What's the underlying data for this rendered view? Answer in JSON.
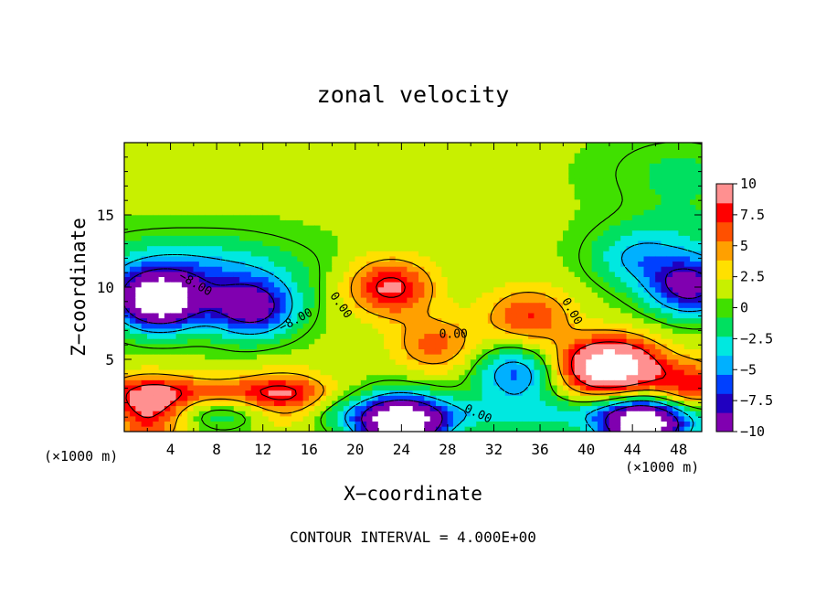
{
  "chart_data": {
    "type": "heatmap",
    "title": "zonal velocity",
    "xlabel": "X−coordinate",
    "ylabel": "Z−coordinate",
    "x_unit": "(×1000 m)",
    "x_unit_right": "(×1000 m)",
    "xlim": [
      0,
      50
    ],
    "ylim": [
      0,
      20
    ],
    "x_ticks": [
      4,
      8,
      12,
      16,
      20,
      24,
      28,
      32,
      36,
      40,
      44,
      48
    ],
    "x_tick_labels": [
      "4",
      "8",
      "12",
      "16",
      "20",
      "24",
      "28",
      "32",
      "36",
      "40",
      "44",
      "48"
    ],
    "y_ticks": [
      5,
      10,
      15
    ],
    "y_tick_labels": [
      "5",
      "10",
      "15"
    ],
    "colorbar": {
      "min": -10,
      "max": 10,
      "ticks": [
        10,
        7.5,
        5,
        2.5,
        0,
        -2.5,
        -5,
        -7.5,
        -10
      ],
      "tick_labels": [
        "10",
        "7.5",
        "5",
        "2.5",
        "0",
        "−2.5",
        "−5",
        "−7.5",
        "−10"
      ],
      "colors": [
        "#8000b0",
        "#2000c0",
        "#0040ff",
        "#00b0ff",
        "#00e8e0",
        "#00e060",
        "#40e000",
        "#c8f000",
        "#ffe000",
        "#ffa000",
        "#ff5000",
        "#ff0000",
        "#ff9090"
      ]
    },
    "contour_labels": [
      "−8.00",
      "−8.00",
      "0.00",
      "0.00",
      "0.00",
      "0.00"
    ],
    "contour_interval_text": "CONTOUR INTERVAL = 4.000E+00",
    "field_features": [
      {
        "x": 23,
        "z": 10,
        "value": 9
      },
      {
        "x": 11,
        "z": 8.5,
        "value": -9.5
      },
      {
        "x": 3,
        "z": 9,
        "value": -14
      },
      {
        "x": 6,
        "z": 16.5,
        "value": 1.5
      },
      {
        "x": 43,
        "z": 4.5,
        "value": 12
      },
      {
        "x": 40,
        "z": 4.5,
        "value": 7
      },
      {
        "x": 35,
        "z": 8,
        "value": 7
      },
      {
        "x": 14,
        "z": 2,
        "value": 8
      },
      {
        "x": 2,
        "z": 1.5,
        "value": 12
      },
      {
        "x": 24,
        "z": 0.5,
        "value": -14
      },
      {
        "x": 45,
        "z": 0.4,
        "value": -14
      },
      {
        "x": 49,
        "z": 10,
        "value": -9
      },
      {
        "x": 44,
        "z": 12,
        "value": -3
      },
      {
        "x": 27,
        "z": 6,
        "value": 6
      },
      {
        "x": 34,
        "z": 4,
        "value": -6
      },
      {
        "x": 49,
        "z": 3,
        "value": 8
      }
    ]
  }
}
